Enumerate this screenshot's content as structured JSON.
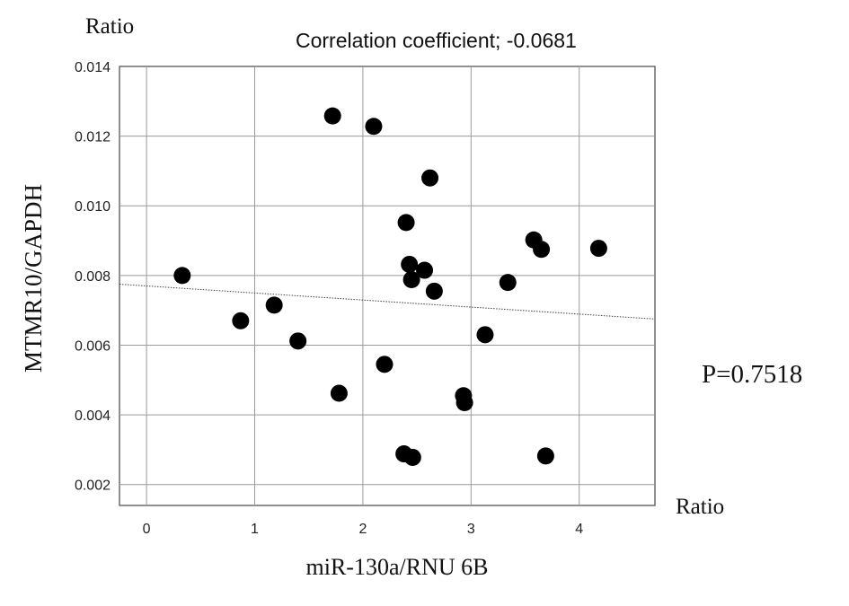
{
  "chart_data": {
    "type": "scatter",
    "title": "",
    "xlabel": "miR-130a/RNU 6B",
    "ylabel": "MTMR10/GAPDH",
    "x_unit_label": "Ratio",
    "y_unit_label": "Ratio",
    "annotations": {
      "correlation": "Correlation coefficient; -0.0681",
      "p_value": "P=0.7518"
    },
    "xlim": [
      -0.25,
      4.7
    ],
    "ylim": [
      0.0014,
      0.014
    ],
    "x_ticks": [
      0,
      1,
      2,
      3,
      4
    ],
    "x_tick_labels": [
      "0",
      "1",
      "2",
      "3",
      "4"
    ],
    "y_ticks": [
      0.002,
      0.004,
      0.006,
      0.008,
      0.01,
      0.012,
      0.014
    ],
    "y_tick_labels": [
      "0.002",
      "0.004",
      "0.006",
      "0.008",
      "0.010",
      "0.012",
      "0.014"
    ],
    "grid": true,
    "points": [
      {
        "x": 0.33,
        "y": 0.008
      },
      {
        "x": 0.87,
        "y": 0.0067
      },
      {
        "x": 1.18,
        "y": 0.00715
      },
      {
        "x": 1.4,
        "y": 0.00612
      },
      {
        "x": 1.72,
        "y": 0.01258
      },
      {
        "x": 1.78,
        "y": 0.00462
      },
      {
        "x": 2.1,
        "y": 0.01228
      },
      {
        "x": 2.2,
        "y": 0.00545
      },
      {
        "x": 2.38,
        "y": 0.00288
      },
      {
        "x": 2.4,
        "y": 0.00952
      },
      {
        "x": 2.43,
        "y": 0.00832
      },
      {
        "x": 2.45,
        "y": 0.00788
      },
      {
        "x": 2.46,
        "y": 0.00278
      },
      {
        "x": 2.57,
        "y": 0.00815
      },
      {
        "x": 2.62,
        "y": 0.0108
      },
      {
        "x": 2.66,
        "y": 0.00755
      },
      {
        "x": 2.93,
        "y": 0.00455
      },
      {
        "x": 2.94,
        "y": 0.00435
      },
      {
        "x": 3.13,
        "y": 0.0063
      },
      {
        "x": 3.34,
        "y": 0.0078
      },
      {
        "x": 3.58,
        "y": 0.00902
      },
      {
        "x": 3.65,
        "y": 0.00875
      },
      {
        "x": 3.69,
        "y": 0.00282
      },
      {
        "x": 4.18,
        "y": 0.00878
      }
    ],
    "regression_line": {
      "x": [
        -0.25,
        4.7
      ],
      "y": [
        0.00775,
        0.00675
      ]
    },
    "colors": {
      "points": "#000000",
      "grid": "#9a9a9a",
      "axis": "#555555",
      "regression": "#444444"
    }
  }
}
